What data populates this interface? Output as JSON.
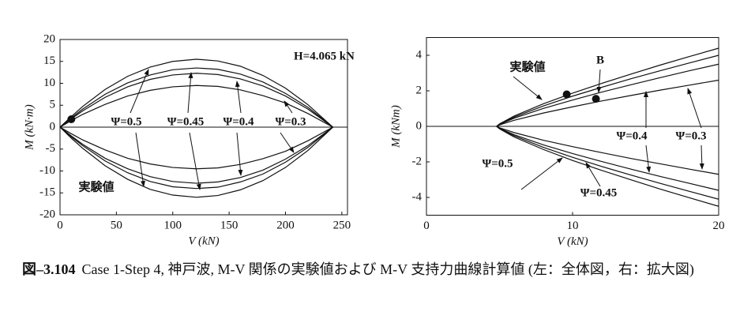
{
  "chart_data": [
    {
      "type": "line",
      "xlabel": "V (kN)",
      "ylabel": "M (kN·m)",
      "xlim": [
        0,
        255
      ],
      "ylim": [
        -20,
        20
      ],
      "xticks": [
        0,
        50,
        100,
        150,
        200,
        250
      ],
      "yticks": [
        -20,
        -15,
        -10,
        -5,
        0,
        5,
        10,
        15,
        20
      ],
      "x": [
        0,
        10,
        20,
        40,
        60,
        80,
        100,
        121,
        140,
        160,
        180,
        200,
        220,
        242
      ],
      "series": [
        {
          "color": "#111",
          "values": [
            0,
            2.4,
            4.7,
            8.6,
            11.6,
            13.7,
            15.0,
            15.5,
            15.1,
            13.9,
            11.8,
            8.9,
            5.1,
            0
          ]
        },
        {
          "color": "#111",
          "values": [
            0,
            2.1,
            4.1,
            7.5,
            10.1,
            11.9,
            13.1,
            13.5,
            13.2,
            12.1,
            10.3,
            7.7,
            4.5,
            0
          ]
        },
        {
          "color": "#111",
          "values": [
            0,
            1.9,
            3.7,
            6.8,
            9.2,
            10.9,
            11.9,
            12.3,
            12.0,
            11.0,
            9.4,
            7.1,
            4.1,
            0
          ]
        },
        {
          "color": "#111",
          "values": [
            0,
            1.5,
            2.9,
            5.2,
            7.1,
            8.4,
            9.2,
            9.5,
            9.3,
            8.5,
            7.2,
            5.5,
            3.1,
            0
          ]
        },
        {
          "color": "#111",
          "values": [
            0,
            -2.5,
            -4.8,
            -8.8,
            -11.9,
            -14.2,
            -15.5,
            -16,
            -15.6,
            -14.3,
            -12.2,
            -9.2,
            -5.3,
            0
          ]
        },
        {
          "color": "#111",
          "values": [
            0,
            -2.2,
            -4.2,
            -7.7,
            -10.4,
            -12.4,
            -13.6,
            -14,
            -13.7,
            -12.5,
            -10.7,
            -8.0,
            -4.6,
            0
          ]
        },
        {
          "color": "#111",
          "values": [
            0,
            -2.0,
            -3.9,
            -7.1,
            -9.5,
            -11.3,
            -12.4,
            -12.8,
            -12.5,
            -11.5,
            -9.8,
            -7.3,
            -4.2,
            0
          ]
        },
        {
          "color": "#111",
          "values": [
            0,
            -1.5,
            -2.9,
            -5.2,
            -7.1,
            -8.4,
            -9.2,
            -9.5,
            -9.3,
            -8.5,
            -7.2,
            -5.5,
            -3.1,
            0
          ]
        }
      ],
      "points": [
        {
          "x": 10,
          "y": 1.8
        }
      ],
      "annotations": [
        "H=4.065 kN",
        "Ψ=0.5",
        "Ψ=0.45",
        "Ψ=0.4",
        "Ψ=0.3",
        "実験値"
      ]
    },
    {
      "type": "line",
      "xlabel": "V (kN)",
      "ylabel": "M (kNm)",
      "xlim": [
        0,
        20
      ],
      "ylim": [
        -5,
        5
      ],
      "xticks": [
        0,
        10,
        20
      ],
      "yticks": [
        -4,
        -2,
        0,
        2,
        4
      ],
      "x": [
        4.8,
        5,
        6,
        8,
        10,
        12,
        14,
        16,
        18,
        20
      ],
      "series": [
        {
          "color": "#111",
          "values": [
            0,
            0.14,
            0.58,
            1.27,
            1.87,
            2.42,
            2.94,
            3.45,
            3.93,
            4.4
          ]
        },
        {
          "color": "#111",
          "values": [
            0,
            0.12,
            0.52,
            1.15,
            1.7,
            2.2,
            2.68,
            3.13,
            3.57,
            4.0
          ]
        },
        {
          "color": "#111",
          "values": [
            0,
            0.11,
            0.46,
            1.01,
            1.48,
            1.93,
            2.34,
            2.74,
            3.13,
            3.5
          ]
        },
        {
          "color": "#111",
          "values": [
            0,
            0.08,
            0.34,
            0.75,
            1.1,
            1.43,
            1.74,
            2.04,
            2.32,
            2.6
          ]
        },
        {
          "color": "#111",
          "values": [
            0,
            -0.14,
            -0.6,
            -1.3,
            -1.92,
            -2.48,
            -3.01,
            -3.53,
            -4.02,
            -4.5
          ]
        },
        {
          "color": "#111",
          "values": [
            0,
            -0.12,
            -0.53,
            -1.18,
            -1.74,
            -2.26,
            -2.74,
            -3.21,
            -3.66,
            -4.1
          ]
        },
        {
          "color": "#111",
          "values": [
            0,
            -0.11,
            -0.47,
            -1.04,
            -1.53,
            -1.98,
            -2.41,
            -2.82,
            -3.21,
            -3.6
          ]
        },
        {
          "color": "#111",
          "values": [
            0,
            -0.08,
            -0.35,
            -0.78,
            -1.14,
            -1.48,
            -1.81,
            -2.11,
            -2.41,
            -2.7
          ]
        }
      ],
      "points": [
        {
          "x": 9.6,
          "y": 1.8
        },
        {
          "x": 11.6,
          "y": 1.55
        }
      ],
      "annotations": [
        "実験値",
        "B",
        "Ψ=0.4",
        "Ψ=0.3",
        "Ψ=0.5",
        "Ψ=0.45"
      ]
    }
  ],
  "caption": {
    "label": "図–3.104",
    "text": "Case 1-Step 4, 神戸波, M-V 関係の実験値および M-V 支持力曲線計算値 (左：全体図，右：拡大図)"
  }
}
